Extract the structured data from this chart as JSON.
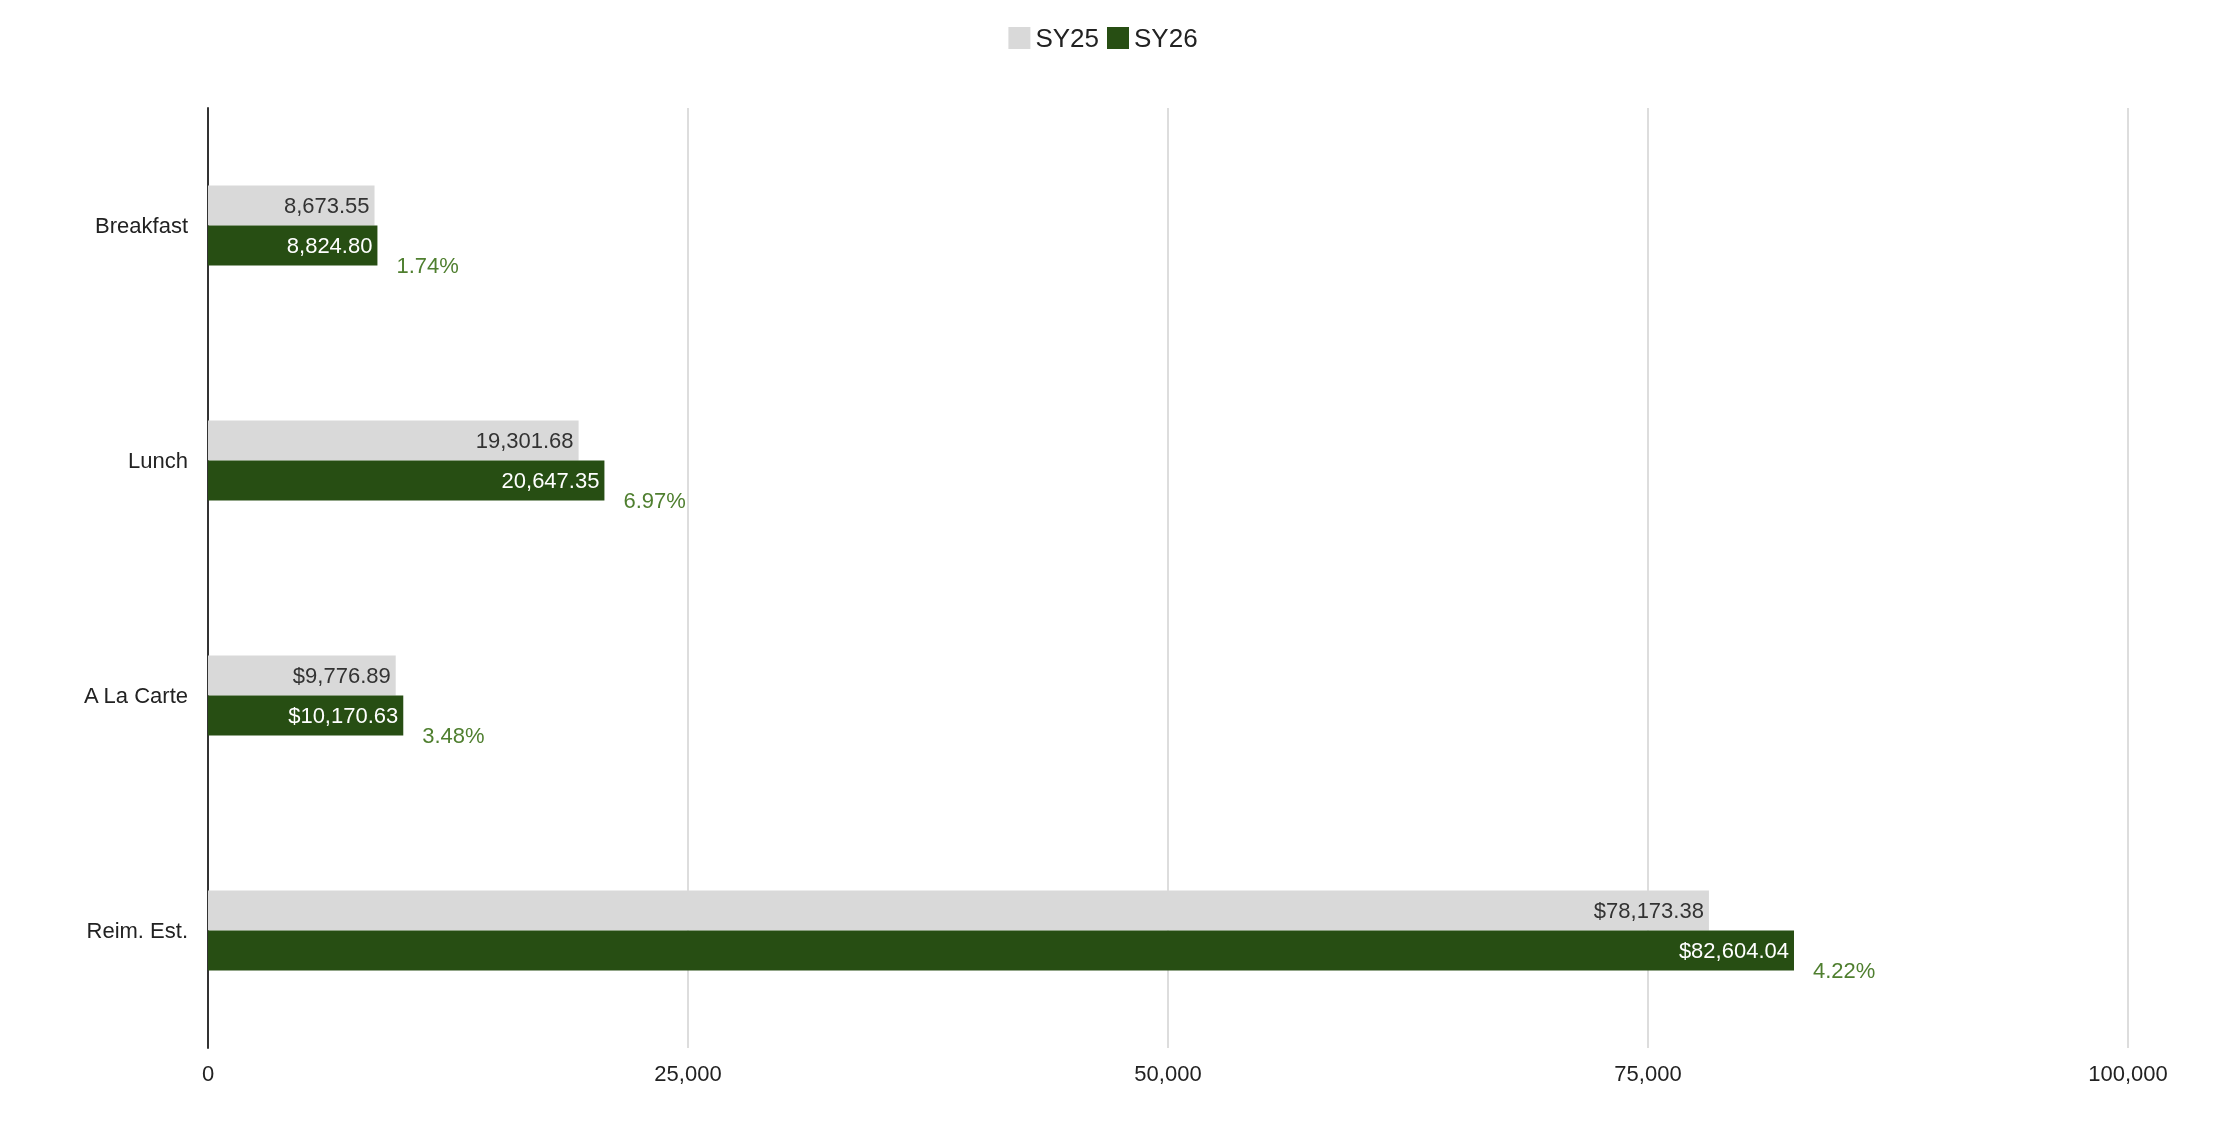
{
  "chart_data": {
    "type": "bar",
    "orientation": "horizontal",
    "categories": [
      "Breakfast",
      "Lunch",
      "A La Carte",
      "Reim. Est."
    ],
    "series": [
      {
        "name": "SY25",
        "color": "#d9d9d9",
        "values": [
          8673.55,
          19301.68,
          9776.89,
          78173.38
        ],
        "value_labels": [
          "8,673.55",
          "19,301.68",
          "$9,776.89",
          "$78,173.38"
        ]
      },
      {
        "name": "SY26",
        "color": "#274e13",
        "values": [
          8824.8,
          20647.35,
          10170.63,
          82604.04
        ],
        "value_labels": [
          "8,824.80",
          "20,647.35",
          "$10,170.63",
          "$82,604.04"
        ]
      }
    ],
    "xlim": [
      0,
      100000
    ],
    "xticks": [
      {
        "value": 0,
        "label": "0"
      },
      {
        "value": 25000,
        "label": "25,000"
      },
      {
        "value": 50000,
        "label": "50,000"
      },
      {
        "value": 75000,
        "label": "75,000"
      },
      {
        "value": 100000,
        "label": "100,000"
      }
    ],
    "grid": "x",
    "legend": "top",
    "annotations": [
      {
        "text": "1.74%",
        "x": 8824.8,
        "y": "Breakfast"
      },
      {
        "text": "6.97%",
        "x": 20647.35,
        "y": "Lunch"
      },
      {
        "text": "3.48%",
        "x": 10170.63,
        "y": "A La Carte"
      },
      {
        "text": "4.22%",
        "x": 82604.04,
        "y": "Reim. Est."
      }
    ]
  }
}
